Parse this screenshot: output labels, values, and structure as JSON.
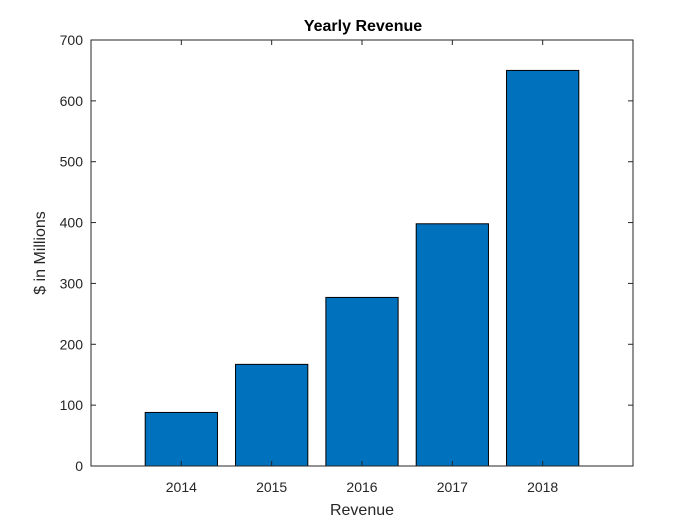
{
  "chart_data": {
    "type": "bar",
    "title": "Yearly Revenue",
    "xlabel": "Revenue",
    "ylabel": "$ in Millions",
    "categories": [
      "2014",
      "2015",
      "2016",
      "2017",
      "2018"
    ],
    "values": [
      88,
      167,
      277,
      398,
      650
    ],
    "ylim": [
      0,
      700
    ],
    "yticks": [
      0,
      100,
      200,
      300,
      400,
      500,
      600,
      700
    ],
    "xlim": [
      2013,
      2019
    ],
    "grid": false,
    "bar_color": "#0072BD",
    "bar_edge_color": "#000000",
    "axis_color": "#262626"
  }
}
